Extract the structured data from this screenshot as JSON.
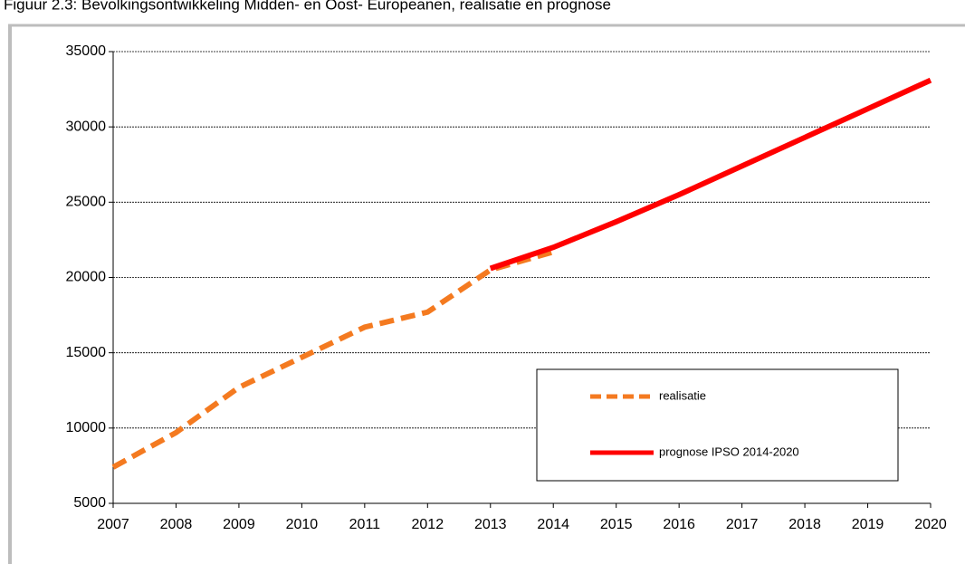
{
  "chart_data": {
    "type": "line",
    "title": "Figuur 2.3: Bevolkingsontwikkeling Midden- en Oost- Europeanen, realisatie en prognose",
    "x": [
      2007,
      2008,
      2009,
      2010,
      2011,
      2012,
      2013,
      2014,
      2015,
      2016,
      2017,
      2018,
      2019,
      2020
    ],
    "series": [
      {
        "name": "realisatie",
        "color": "#f47a20",
        "dashed": true,
        "values": [
          7400,
          9700,
          12700,
          14700,
          16700,
          17700,
          20500,
          21700,
          null,
          null,
          null,
          null,
          null,
          null
        ]
      },
      {
        "name": "prognose IPSO 2014-2020",
        "color": "#ff0000",
        "dashed": false,
        "values": [
          null,
          null,
          null,
          null,
          null,
          null,
          20600,
          22000,
          23700,
          25500,
          27400,
          29300,
          31200,
          33100
        ]
      }
    ],
    "xlim": [
      2007,
      2020
    ],
    "xticks": [
      2007,
      2008,
      2009,
      2010,
      2011,
      2012,
      2013,
      2014,
      2015,
      2016,
      2017,
      2018,
      2019,
      2020
    ],
    "ylim": [
      5000,
      35000
    ],
    "yticks": [
      5000,
      10000,
      15000,
      20000,
      25000,
      30000,
      35000
    ],
    "grid": true,
    "legend": "lower right"
  }
}
